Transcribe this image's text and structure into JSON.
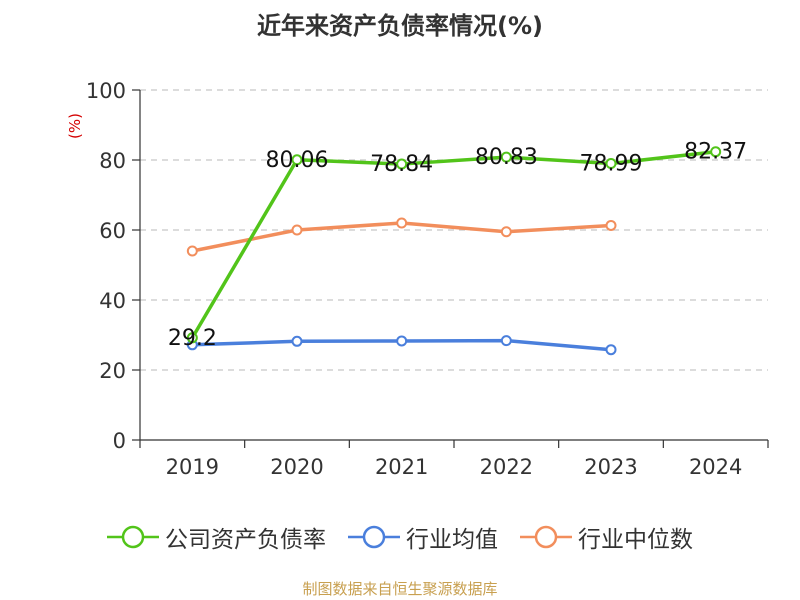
{
  "chart_data": {
    "type": "line",
    "title": "近年来资产负债率情况(%)",
    "ylabel": "(%)",
    "xlabel": "",
    "categories": [
      "2019",
      "2020",
      "2021",
      "2022",
      "2023",
      "2024"
    ],
    "ylim": [
      0,
      100
    ],
    "yticks": [
      0,
      20,
      40,
      60,
      80,
      100
    ],
    "grid": true,
    "legend_position": "bottom",
    "series": [
      {
        "name": "公司资产负债率",
        "color": "#52c41a",
        "values": [
          29.2,
          80.06,
          78.84,
          80.83,
          78.99,
          82.37
        ],
        "labels": [
          "29.2",
          "80.06",
          "78.84",
          "80.83",
          "78.99",
          "82.37"
        ]
      },
      {
        "name": "行业均值",
        "color": "#4a7fdc",
        "values": [
          27.2,
          28.2,
          28.3,
          28.4,
          25.8,
          null
        ]
      },
      {
        "name": "行业中位数",
        "color": "#f28e5c",
        "values": [
          54.0,
          60.0,
          62.0,
          59.5,
          61.3,
          null
        ]
      }
    ]
  },
  "source_note": "制图数据来自恒生聚源数据库",
  "source_color": "#c8a050"
}
